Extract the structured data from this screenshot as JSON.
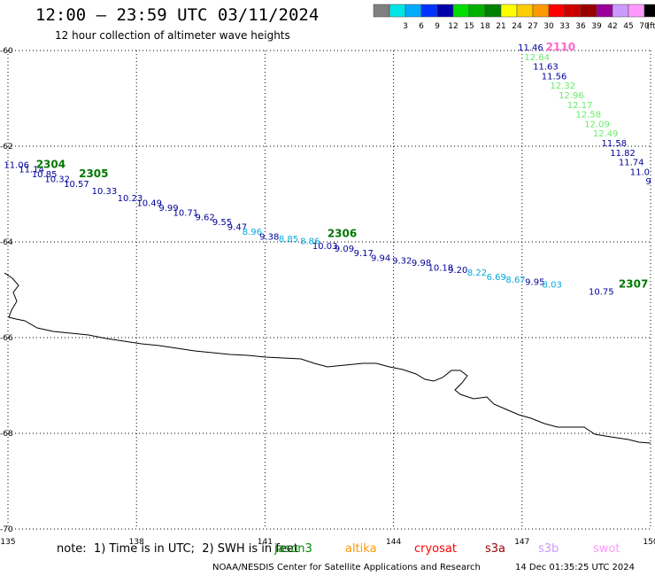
{
  "header": {
    "title": "12:00 – 23:59 UTC 03/11/2024",
    "subtitle": "12 hour collection of altimeter wave heights"
  },
  "legend": {
    "unit": "(ft)",
    "swatches": [
      {
        "color": "#808080",
        "label": ""
      },
      {
        "color": "#00e5e5",
        "label": "3"
      },
      {
        "color": "#00aaff",
        "label": "6"
      },
      {
        "color": "#0033ff",
        "label": "9"
      },
      {
        "color": "#0000aa",
        "label": "12"
      },
      {
        "color": "#00dd00",
        "label": "15"
      },
      {
        "color": "#00b000",
        "label": "18"
      },
      {
        "color": "#008000",
        "label": "21"
      },
      {
        "color": "#ffff00",
        "label": "24"
      },
      {
        "color": "#ffcc00",
        "label": "27"
      },
      {
        "color": "#ff9900",
        "label": "30"
      },
      {
        "color": "#ff0000",
        "label": "33"
      },
      {
        "color": "#cc0000",
        "label": "36"
      },
      {
        "color": "#990000",
        "label": "39"
      },
      {
        "color": "#990099",
        "label": "42"
      },
      {
        "color": "#cc99ff",
        "label": "45"
      },
      {
        "color": "#ff99ff",
        "label": "70"
      },
      {
        "color": "#000000",
        "label": ""
      }
    ]
  },
  "map": {
    "lon_range": [
      135,
      150
    ],
    "lat_range": [
      -70,
      -60
    ],
    "lon_ticks": [
      "135",
      "138",
      "141",
      "144",
      "147",
      "150"
    ],
    "lat_ticks": [
      "-60",
      "-62",
      "-64",
      "-66",
      "-68",
      "-70"
    ],
    "grid": "dotted",
    "track_labels": [
      {
        "text": "2304",
        "lon": 136.0,
        "lat": -62.45,
        "color": "#007700"
      },
      {
        "text": "2305",
        "lon": 137.0,
        "lat": -62.65,
        "color": "#007700"
      },
      {
        "text": "2306",
        "lon": 142.8,
        "lat": -63.9,
        "color": "#007700"
      },
      {
        "text": "2307",
        "lon": 149.6,
        "lat": -64.95,
        "color": "#007700"
      },
      {
        "text": "2110",
        "lon": 147.9,
        "lat": -60.0,
        "color": "#ff66cc"
      }
    ],
    "points": [
      {
        "text": "11.06",
        "lon": 135.2,
        "lat": -62.45,
        "color": "#000099"
      },
      {
        "text": "11.14",
        "lon": 135.55,
        "lat": -62.55,
        "color": "#000099"
      },
      {
        "text": "10.85",
        "lon": 135.85,
        "lat": -62.65,
        "color": "#000099"
      },
      {
        "text": "10.32",
        "lon": 136.15,
        "lat": -62.75,
        "color": "#000099"
      },
      {
        "text": "10.57",
        "lon": 136.6,
        "lat": -62.85,
        "color": "#000099"
      },
      {
        "text": "10.33",
        "lon": 137.25,
        "lat": -63.0,
        "color": "#000099"
      },
      {
        "text": "10.23",
        "lon": 137.85,
        "lat": -63.15,
        "color": "#000099"
      },
      {
        "text": "10.49",
        "lon": 138.3,
        "lat": -63.25,
        "color": "#000099"
      },
      {
        "text": "9.99",
        "lon": 138.75,
        "lat": -63.35,
        "color": "#000099"
      },
      {
        "text": "10.71",
        "lon": 139.15,
        "lat": -63.45,
        "color": "#000099"
      },
      {
        "text": "9.62",
        "lon": 139.6,
        "lat": -63.55,
        "color": "#000099"
      },
      {
        "text": "9.55",
        "lon": 140.0,
        "lat": -63.65,
        "color": "#000099"
      },
      {
        "text": "9.47",
        "lon": 140.35,
        "lat": -63.75,
        "color": "#000099"
      },
      {
        "text": "8.96",
        "lon": 140.7,
        "lat": -63.85,
        "color": "#00aadd"
      },
      {
        "text": "9.38",
        "lon": 141.1,
        "lat": -63.95,
        "color": "#000099"
      },
      {
        "text": "8.85",
        "lon": 141.55,
        "lat": -64.0,
        "color": "#00aadd"
      },
      {
        "text": "8.86",
        "lon": 142.05,
        "lat": -64.05,
        "color": "#00aadd"
      },
      {
        "text": "10.03",
        "lon": 142.4,
        "lat": -64.15,
        "color": "#000099"
      },
      {
        "text": "9.09",
        "lon": 142.85,
        "lat": -64.2,
        "color": "#000099"
      },
      {
        "text": "9.17",
        "lon": 143.3,
        "lat": -64.3,
        "color": "#000099"
      },
      {
        "text": "9.94",
        "lon": 143.7,
        "lat": -64.4,
        "color": "#000099"
      },
      {
        "text": "9.32",
        "lon": 144.2,
        "lat": -64.45,
        "color": "#000099"
      },
      {
        "text": "9.98",
        "lon": 144.65,
        "lat": -64.5,
        "color": "#000099"
      },
      {
        "text": "10.18",
        "lon": 145.1,
        "lat": -64.6,
        "color": "#000099"
      },
      {
        "text": "9.20",
        "lon": 145.5,
        "lat": -64.65,
        "color": "#000099"
      },
      {
        "text": "8.22",
        "lon": 145.95,
        "lat": -64.7,
        "color": "#00aadd"
      },
      {
        "text": "6.69",
        "lon": 146.4,
        "lat": -64.8,
        "color": "#00aadd"
      },
      {
        "text": "8.67",
        "lon": 146.85,
        "lat": -64.85,
        "color": "#00aadd"
      },
      {
        "text": "9.95",
        "lon": 147.3,
        "lat": -64.9,
        "color": "#000099"
      },
      {
        "text": "8.03",
        "lon": 147.7,
        "lat": -64.95,
        "color": "#00aadd"
      },
      {
        "text": "10.75",
        "lon": 148.85,
        "lat": -65.1,
        "color": "#000099"
      },
      {
        "text": "11.46",
        "lon": 147.2,
        "lat": -60.0,
        "color": "#000099"
      },
      {
        "text": "12.64",
        "lon": 147.35,
        "lat": -60.2,
        "color": "#66ee66"
      },
      {
        "text": "11.63",
        "lon": 147.55,
        "lat": -60.4,
        "color": "#000099"
      },
      {
        "text": "11.56",
        "lon": 147.75,
        "lat": -60.6,
        "color": "#000099"
      },
      {
        "text": "12.32",
        "lon": 147.95,
        "lat": -60.8,
        "color": "#66ee66"
      },
      {
        "text": "12.96",
        "lon": 148.15,
        "lat": -61.0,
        "color": "#66ee66"
      },
      {
        "text": "12.17",
        "lon": 148.35,
        "lat": -61.2,
        "color": "#66ee66"
      },
      {
        "text": "12.58",
        "lon": 148.55,
        "lat": -61.4,
        "color": "#66ee66"
      },
      {
        "text": "12.09",
        "lon": 148.75,
        "lat": -61.6,
        "color": "#66ee66"
      },
      {
        "text": "12.49",
        "lon": 148.95,
        "lat": -61.8,
        "color": "#66ee66"
      },
      {
        "text": "11.58",
        "lon": 149.15,
        "lat": -62.0,
        "color": "#000099"
      },
      {
        "text": "11.82",
        "lon": 149.35,
        "lat": -62.2,
        "color": "#000099"
      },
      {
        "text": "11.74",
        "lon": 149.55,
        "lat": -62.4,
        "color": "#000099"
      },
      {
        "text": "11.0",
        "lon": 149.75,
        "lat": -62.6,
        "color": "#000099"
      },
      {
        "text": "9",
        "lon": 149.95,
        "lat": -62.8,
        "color": "#000099"
      }
    ]
  },
  "footer": {
    "note": "note:  1) Time is in UTC;  2) SWH is in feet",
    "satellites": [
      {
        "name": "jason3",
        "color": "#008800"
      },
      {
        "name": "altika",
        "color": "#ff9900"
      },
      {
        "name": "cryosat",
        "color": "#ff0000"
      },
      {
        "name": "s3a",
        "color": "#990000"
      },
      {
        "name": "s3b",
        "color": "#cc99ff"
      },
      {
        "name": "swot",
        "color": "#ff99ff"
      }
    ],
    "credit": "NOAA/NESDIS Center for Satellite Applications and Research",
    "timestamp": "14 Dec 01:35:25 UTC 2024"
  }
}
